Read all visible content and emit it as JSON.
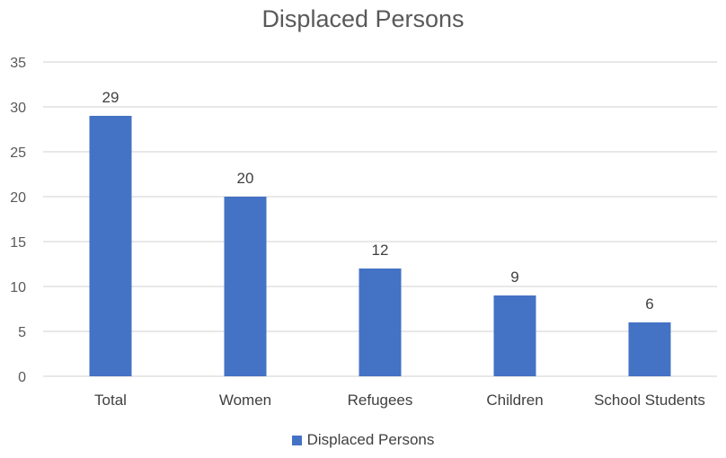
{
  "chart_data": {
    "type": "bar",
    "title": "Displaced Persons",
    "categories": [
      "Total",
      "Women",
      "Refugees",
      "Children",
      "School Students"
    ],
    "series": [
      {
        "name": "Displaced Persons",
        "values": [
          29,
          20,
          12,
          9,
          6
        ]
      }
    ],
    "xlabel": "",
    "ylabel": "",
    "ylim": [
      0,
      35
    ],
    "yticks": [
      0,
      5,
      10,
      15,
      20,
      25,
      30,
      35
    ],
    "grid": true,
    "legend_position": "bottom",
    "data_labels": true,
    "colors": {
      "bar": "#4472C4",
      "grid": "#D9D9D9",
      "axis_text": "#595959"
    }
  }
}
